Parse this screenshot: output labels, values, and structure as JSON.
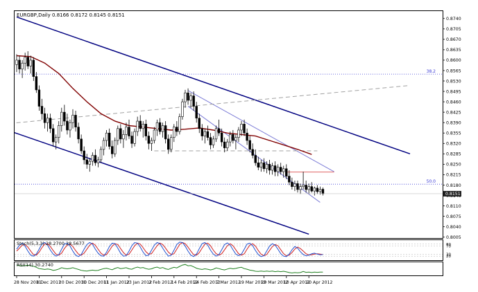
{
  "symbol_header": "EURGBP,Daily  0.8166 0.8172 0.8145 0.8151",
  "colors": {
    "channel": "#000080",
    "inner_channel": "#7b7bd6",
    "ma": "#800000",
    "fib": "#3a3ad6",
    "dash": "#a0a0a0",
    "resistance": "#e06060",
    "current_price_bg": "#202020",
    "stoch_main": "#2050d0",
    "stoch_signal": "#d02020",
    "rsi": "#208020",
    "candle": "#000000"
  },
  "chart_data": {
    "type": "candlestick",
    "price_axis_labels": [
      "0.8740",
      "0.8705",
      "0.8670",
      "0.8635",
      "0.8600",
      "0.8565",
      "0.8530",
      "0.8495",
      "0.8460",
      "0.8425",
      "0.8390",
      "0.8355",
      "0.8320",
      "0.8285",
      "0.8250",
      "0.8215",
      "0.8180",
      "0.8145",
      "0.8110",
      "0.8075",
      "0.8040",
      "0.8005"
    ],
    "current_price_label": "0.8151",
    "ylim": [
      0.8002,
      0.8765
    ],
    "date_labels": [
      "28 Nov 2011",
      "8 Dec 2011",
      "20 Dec 2011",
      "30 Dec 2011",
      "11 Jan 2012",
      "23 Jan 2012",
      "2 Feb 2012",
      "14 Feb 2012",
      "24 Feb 2012",
      "7 Mar 2012",
      "19 Mar 2012",
      "29 Mar 2012",
      "10 Apr 2012",
      "20 Apr 2012"
    ],
    "date_label_bar_index": [
      0,
      8,
      16,
      24,
      32,
      40,
      48,
      56,
      64,
      72,
      80,
      88,
      96,
      104
    ],
    "bar_count": 110,
    "candles": [
      {
        "o": 0.8585,
        "h": 0.862,
        "l": 0.856,
        "c": 0.86
      },
      {
        "o": 0.86,
        "h": 0.8615,
        "l": 0.8555,
        "c": 0.857
      },
      {
        "o": 0.857,
        "h": 0.86,
        "l": 0.854,
        "c": 0.859
      },
      {
        "o": 0.859,
        "h": 0.8625,
        "l": 0.8565,
        "c": 0.861
      },
      {
        "o": 0.861,
        "h": 0.863,
        "l": 0.857,
        "c": 0.858
      },
      {
        "o": 0.858,
        "h": 0.8615,
        "l": 0.8555,
        "c": 0.86
      },
      {
        "o": 0.86,
        "h": 0.861,
        "l": 0.853,
        "c": 0.8545
      },
      {
        "o": 0.8545,
        "h": 0.856,
        "l": 0.849,
        "c": 0.85
      },
      {
        "o": 0.85,
        "h": 0.8515,
        "l": 0.843,
        "c": 0.8445
      },
      {
        "o": 0.8445,
        "h": 0.847,
        "l": 0.84,
        "c": 0.842
      },
      {
        "o": 0.842,
        "h": 0.844,
        "l": 0.837,
        "c": 0.839
      },
      {
        "o": 0.839,
        "h": 0.842,
        "l": 0.836,
        "c": 0.8405
      },
      {
        "o": 0.8405,
        "h": 0.842,
        "l": 0.8355,
        "c": 0.837
      },
      {
        "o": 0.837,
        "h": 0.8385,
        "l": 0.831,
        "c": 0.8325
      },
      {
        "o": 0.8325,
        "h": 0.835,
        "l": 0.83,
        "c": 0.834
      },
      {
        "o": 0.834,
        "h": 0.8395,
        "l": 0.832,
        "c": 0.838
      },
      {
        "o": 0.838,
        "h": 0.844,
        "l": 0.836,
        "c": 0.8425
      },
      {
        "o": 0.8425,
        "h": 0.845,
        "l": 0.838,
        "c": 0.8395
      },
      {
        "o": 0.8395,
        "h": 0.842,
        "l": 0.835,
        "c": 0.8365
      },
      {
        "o": 0.8365,
        "h": 0.84,
        "l": 0.834,
        "c": 0.839
      },
      {
        "o": 0.839,
        "h": 0.8435,
        "l": 0.837,
        "c": 0.8415
      },
      {
        "o": 0.8415,
        "h": 0.843,
        "l": 0.836,
        "c": 0.8375
      },
      {
        "o": 0.8375,
        "h": 0.839,
        "l": 0.832,
        "c": 0.8335
      },
      {
        "o": 0.8335,
        "h": 0.835,
        "l": 0.8285,
        "c": 0.8295
      },
      {
        "o": 0.8295,
        "h": 0.831,
        "l": 0.825,
        "c": 0.8265
      },
      {
        "o": 0.8265,
        "h": 0.8285,
        "l": 0.8235,
        "c": 0.825
      },
      {
        "o": 0.825,
        "h": 0.827,
        "l": 0.8225,
        "c": 0.826
      },
      {
        "o": 0.826,
        "h": 0.829,
        "l": 0.8245,
        "c": 0.828
      },
      {
        "o": 0.828,
        "h": 0.83,
        "l": 0.8245,
        "c": 0.8255
      },
      {
        "o": 0.8255,
        "h": 0.8275,
        "l": 0.824,
        "c": 0.8265
      },
      {
        "o": 0.8265,
        "h": 0.831,
        "l": 0.8255,
        "c": 0.83
      },
      {
        "o": 0.83,
        "h": 0.834,
        "l": 0.828,
        "c": 0.833
      },
      {
        "o": 0.833,
        "h": 0.8365,
        "l": 0.831,
        "c": 0.8355
      },
      {
        "o": 0.8355,
        "h": 0.837,
        "l": 0.83,
        "c": 0.831
      },
      {
        "o": 0.831,
        "h": 0.833,
        "l": 0.827,
        "c": 0.8285
      },
      {
        "o": 0.8285,
        "h": 0.834,
        "l": 0.8275,
        "c": 0.833
      },
      {
        "o": 0.833,
        "h": 0.838,
        "l": 0.8315,
        "c": 0.837
      },
      {
        "o": 0.837,
        "h": 0.8385,
        "l": 0.832,
        "c": 0.8335
      },
      {
        "o": 0.8335,
        "h": 0.8365,
        "l": 0.8305,
        "c": 0.835
      },
      {
        "o": 0.835,
        "h": 0.839,
        "l": 0.833,
        "c": 0.8375
      },
      {
        "o": 0.8375,
        "h": 0.84,
        "l": 0.8335,
        "c": 0.8345
      },
      {
        "o": 0.8345,
        "h": 0.836,
        "l": 0.8305,
        "c": 0.832
      },
      {
        "o": 0.832,
        "h": 0.837,
        "l": 0.831,
        "c": 0.836
      },
      {
        "o": 0.836,
        "h": 0.841,
        "l": 0.8345,
        "c": 0.8395
      },
      {
        "o": 0.8395,
        "h": 0.8415,
        "l": 0.836,
        "c": 0.837
      },
      {
        "o": 0.837,
        "h": 0.8395,
        "l": 0.834,
        "c": 0.8385
      },
      {
        "o": 0.8385,
        "h": 0.84,
        "l": 0.833,
        "c": 0.8345
      },
      {
        "o": 0.8345,
        "h": 0.836,
        "l": 0.83,
        "c": 0.832
      },
      {
        "o": 0.832,
        "h": 0.834,
        "l": 0.8295,
        "c": 0.833
      },
      {
        "o": 0.833,
        "h": 0.8375,
        "l": 0.832,
        "c": 0.8365
      },
      {
        "o": 0.8365,
        "h": 0.84,
        "l": 0.8345,
        "c": 0.839
      },
      {
        "o": 0.839,
        "h": 0.8405,
        "l": 0.835,
        "c": 0.836
      },
      {
        "o": 0.836,
        "h": 0.839,
        "l": 0.834,
        "c": 0.838
      },
      {
        "o": 0.838,
        "h": 0.8395,
        "l": 0.832,
        "c": 0.8335
      },
      {
        "o": 0.8335,
        "h": 0.835,
        "l": 0.8285,
        "c": 0.83
      },
      {
        "o": 0.83,
        "h": 0.835,
        "l": 0.829,
        "c": 0.834
      },
      {
        "o": 0.834,
        "h": 0.8385,
        "l": 0.8325,
        "c": 0.8375
      },
      {
        "o": 0.8375,
        "h": 0.8395,
        "l": 0.8345,
        "c": 0.836
      },
      {
        "o": 0.836,
        "h": 0.842,
        "l": 0.835,
        "c": 0.841
      },
      {
        "o": 0.841,
        "h": 0.847,
        "l": 0.84,
        "c": 0.846
      },
      {
        "o": 0.846,
        "h": 0.85,
        "l": 0.844,
        "c": 0.849
      },
      {
        "o": 0.849,
        "h": 0.8505,
        "l": 0.845,
        "c": 0.8465
      },
      {
        "o": 0.8465,
        "h": 0.849,
        "l": 0.844,
        "c": 0.848
      },
      {
        "o": 0.848,
        "h": 0.8495,
        "l": 0.843,
        "c": 0.8445
      },
      {
        "o": 0.8445,
        "h": 0.846,
        "l": 0.839,
        "c": 0.8405
      },
      {
        "o": 0.8405,
        "h": 0.842,
        "l": 0.8355,
        "c": 0.837
      },
      {
        "o": 0.837,
        "h": 0.8385,
        "l": 0.833,
        "c": 0.8345
      },
      {
        "o": 0.8345,
        "h": 0.837,
        "l": 0.832,
        "c": 0.836
      },
      {
        "o": 0.836,
        "h": 0.838,
        "l": 0.833,
        "c": 0.834
      },
      {
        "o": 0.834,
        "h": 0.8355,
        "l": 0.83,
        "c": 0.8315
      },
      {
        "o": 0.8315,
        "h": 0.8345,
        "l": 0.8305,
        "c": 0.8335
      },
      {
        "o": 0.8335,
        "h": 0.838,
        "l": 0.8325,
        "c": 0.837
      },
      {
        "o": 0.837,
        "h": 0.84,
        "l": 0.8345,
        "c": 0.8355
      },
      {
        "o": 0.8355,
        "h": 0.837,
        "l": 0.831,
        "c": 0.8325
      },
      {
        "o": 0.8325,
        "h": 0.834,
        "l": 0.829,
        "c": 0.8305
      },
      {
        "o": 0.8305,
        "h": 0.8335,
        "l": 0.8295,
        "c": 0.8325
      },
      {
        "o": 0.8325,
        "h": 0.836,
        "l": 0.831,
        "c": 0.835
      },
      {
        "o": 0.835,
        "h": 0.8365,
        "l": 0.832,
        "c": 0.833
      },
      {
        "o": 0.833,
        "h": 0.835,
        "l": 0.83,
        "c": 0.834
      },
      {
        "o": 0.834,
        "h": 0.8375,
        "l": 0.8325,
        "c": 0.8365
      },
      {
        "o": 0.8365,
        "h": 0.8395,
        "l": 0.8345,
        "c": 0.8385
      },
      {
        "o": 0.8385,
        "h": 0.84,
        "l": 0.8345,
        "c": 0.8355
      },
      {
        "o": 0.8355,
        "h": 0.837,
        "l": 0.8315,
        "c": 0.833
      },
      {
        "o": 0.833,
        "h": 0.8345,
        "l": 0.829,
        "c": 0.83
      },
      {
        "o": 0.83,
        "h": 0.832,
        "l": 0.827,
        "c": 0.828
      },
      {
        "o": 0.828,
        "h": 0.83,
        "l": 0.8245,
        "c": 0.8255
      },
      {
        "o": 0.8255,
        "h": 0.8275,
        "l": 0.823,
        "c": 0.824
      },
      {
        "o": 0.824,
        "h": 0.8265,
        "l": 0.8225,
        "c": 0.8255
      },
      {
        "o": 0.8255,
        "h": 0.827,
        "l": 0.8225,
        "c": 0.8235
      },
      {
        "o": 0.8235,
        "h": 0.826,
        "l": 0.822,
        "c": 0.825
      },
      {
        "o": 0.825,
        "h": 0.8265,
        "l": 0.8215,
        "c": 0.823
      },
      {
        "o": 0.823,
        "h": 0.8255,
        "l": 0.8215,
        "c": 0.8245
      },
      {
        "o": 0.8245,
        "h": 0.826,
        "l": 0.821,
        "c": 0.8225
      },
      {
        "o": 0.8225,
        "h": 0.825,
        "l": 0.821,
        "c": 0.824
      },
      {
        "o": 0.824,
        "h": 0.8255,
        "l": 0.8215,
        "c": 0.8225
      },
      {
        "o": 0.8225,
        "h": 0.8245,
        "l": 0.8205,
        "c": 0.8235
      },
      {
        "o": 0.8235,
        "h": 0.825,
        "l": 0.82,
        "c": 0.821
      },
      {
        "o": 0.821,
        "h": 0.823,
        "l": 0.818,
        "c": 0.819
      },
      {
        "o": 0.819,
        "h": 0.8205,
        "l": 0.8165,
        "c": 0.8175
      },
      {
        "o": 0.8175,
        "h": 0.8195,
        "l": 0.816,
        "c": 0.8185
      },
      {
        "o": 0.8185,
        "h": 0.8195,
        "l": 0.8155,
        "c": 0.8165
      },
      {
        "o": 0.8165,
        "h": 0.8185,
        "l": 0.815,
        "c": 0.8175
      },
      {
        "o": 0.8175,
        "h": 0.8225,
        "l": 0.8165,
        "c": 0.818
      },
      {
        "o": 0.818,
        "h": 0.8195,
        "l": 0.8155,
        "c": 0.8165
      },
      {
        "o": 0.8165,
        "h": 0.8185,
        "l": 0.815,
        "c": 0.8175
      },
      {
        "o": 0.8175,
        "h": 0.819,
        "l": 0.8155,
        "c": 0.816
      },
      {
        "o": 0.816,
        "h": 0.8175,
        "l": 0.8145,
        "c": 0.817
      },
      {
        "o": 0.817,
        "h": 0.818,
        "l": 0.815,
        "c": 0.8158
      },
      {
        "o": 0.8158,
        "h": 0.8175,
        "l": 0.8148,
        "c": 0.8166
      },
      {
        "o": 0.8166,
        "h": 0.8172,
        "l": 0.8145,
        "c": 0.8151
      }
    ],
    "moving_average": [
      [
        0,
        0.8615
      ],
      [
        5,
        0.8612
      ],
      [
        10,
        0.859
      ],
      [
        15,
        0.8555
      ],
      [
        20,
        0.8505
      ],
      [
        25,
        0.846
      ],
      [
        30,
        0.842
      ],
      [
        35,
        0.8395
      ],
      [
        40,
        0.838
      ],
      [
        45,
        0.8375
      ],
      [
        50,
        0.837
      ],
      [
        55,
        0.8365
      ],
      [
        60,
        0.8368
      ],
      [
        65,
        0.8372
      ],
      [
        70,
        0.8365
      ],
      [
        75,
        0.8355
      ],
      [
        80,
        0.835
      ],
      [
        85,
        0.8345
      ],
      [
        90,
        0.833
      ],
      [
        95,
        0.8315
      ],
      [
        100,
        0.83
      ],
      [
        105,
        0.8283
      ]
    ],
    "trend_lines": [
      {
        "name": "outer-channel-upper",
        "from": [
          0,
          0.8745
        ],
        "to": [
          140,
          0.8285
        ]
      },
      {
        "name": "outer-channel-lower",
        "from": [
          -5,
          0.837
        ],
        "to": [
          104,
          0.8015
        ]
      },
      {
        "name": "inner-channel-upper",
        "from": [
          61,
          0.8498
        ],
        "to": [
          113,
          0.8225
        ]
      },
      {
        "name": "inner-channel-lower",
        "from": [
          61,
          0.8445
        ],
        "to": [
          108,
          0.8122
        ]
      },
      {
        "name": "dashed-trend",
        "from": [
          -5,
          0.8385
        ],
        "to": [
          140,
          0.8515
        ]
      },
      {
        "name": "dashed-level",
        "from": [
          49,
          0.8295
        ],
        "to": [
          107,
          0.8295
        ]
      },
      {
        "name": "resistance-level",
        "from": [
          96,
          0.8224
        ],
        "to": [
          113,
          0.8224
        ]
      }
    ],
    "fib_levels": [
      {
        "label": "38.2",
        "value": 0.8553
      },
      {
        "label": "50.0",
        "value": 0.8183
      }
    ],
    "stoch_label": "Stoch(5,3,3) 28.2700 28.5677",
    "stoch_levels": [
      "80",
      "70",
      "30",
      "20"
    ],
    "stoch_main": [
      55,
      75,
      85,
      70,
      45,
      25,
      20,
      30,
      55,
      80,
      88,
      75,
      50,
      30,
      20,
      28,
      55,
      80,
      85,
      70,
      45,
      25,
      18,
      28,
      55,
      78,
      88,
      80,
      55,
      35,
      22,
      20,
      40,
      68,
      85,
      82,
      60,
      35,
      20,
      22,
      45,
      72,
      88,
      85,
      65,
      40,
      22,
      25,
      50,
      75,
      88,
      82,
      60,
      38,
      20,
      25,
      50,
      78,
      90,
      88,
      70,
      45,
      25,
      18,
      30,
      58,
      82,
      88,
      75,
      50,
      30,
      20,
      28,
      52,
      78,
      86,
      75,
      52,
      30,
      22,
      30,
      55,
      80,
      85,
      72,
      48,
      28,
      18,
      22,
      45,
      70,
      82,
      75,
      55,
      32,
      20,
      18,
      30,
      52,
      68,
      60,
      42,
      28,
      22,
      25,
      32,
      35,
      30,
      27,
      28
    ],
    "stoch_signal": [
      45,
      60,
      75,
      78,
      65,
      45,
      28,
      25,
      40,
      62,
      80,
      82,
      68,
      48,
      30,
      25,
      35,
      58,
      75,
      80,
      68,
      48,
      30,
      25,
      35,
      55,
      75,
      85,
      75,
      55,
      35,
      25,
      28,
      48,
      70,
      82,
      78,
      58,
      38,
      25,
      30,
      50,
      72,
      85,
      80,
      62,
      42,
      30,
      32,
      52,
      72,
      85,
      78,
      60,
      40,
      28,
      32,
      55,
      78,
      88,
      82,
      65,
      45,
      28,
      25,
      38,
      60,
      80,
      85,
      72,
      50,
      32,
      25,
      32,
      52,
      72,
      82,
      72,
      52,
      32,
      25,
      32,
      55,
      75,
      82,
      70,
      48,
      30,
      22,
      28,
      48,
      68,
      78,
      72,
      52,
      32,
      22,
      25,
      38,
      55,
      65,
      58,
      45,
      32,
      26,
      27,
      30,
      32,
      30,
      28
    ],
    "rsi_label": "RSI(14) 30.2740",
    "rsi": [
      62,
      60,
      58,
      60,
      61,
      59,
      57,
      52,
      46,
      44,
      42,
      44,
      42,
      38,
      40,
      44,
      50,
      47,
      45,
      47,
      50,
      46,
      42,
      38,
      36,
      35,
      37,
      39,
      37,
      38,
      42,
      46,
      48,
      44,
      41,
      47,
      51,
      46,
      48,
      50,
      45,
      43,
      49,
      53,
      49,
      51,
      46,
      43,
      45,
      50,
      53,
      48,
      51,
      45,
      42,
      48,
      52,
      49,
      56,
      62,
      65,
      59,
      60,
      54,
      48,
      44,
      42,
      45,
      43,
      40,
      43,
      49,
      46,
      42,
      40,
      44,
      48,
      45,
      47,
      50,
      52,
      46,
      43,
      39,
      37,
      34,
      33,
      35,
      33,
      35,
      33,
      35,
      32,
      34,
      32,
      34,
      31,
      28,
      26,
      28,
      27,
      28,
      33,
      29,
      30,
      28,
      30,
      29,
      30,
      30
    ]
  }
}
